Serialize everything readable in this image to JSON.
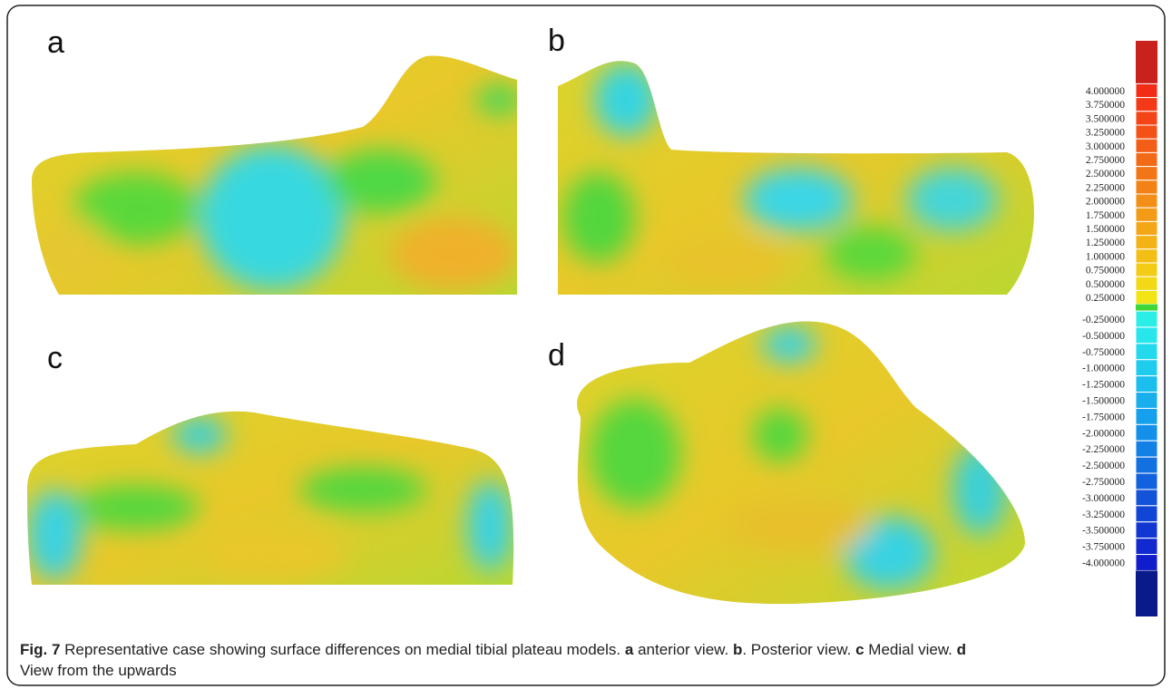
{
  "panels": [
    {
      "label": "a"
    },
    {
      "label": "b"
    },
    {
      "label": "c"
    },
    {
      "label": "d"
    }
  ],
  "colorbar": {
    "positive_labels": [
      "4.000000",
      "3.750000",
      "3.500000",
      "3.250000",
      "3.000000",
      "2.750000",
      "2.500000",
      "2.250000",
      "2.000000",
      "1.750000",
      "1.500000",
      "1.250000",
      "1.000000",
      "0.750000",
      "0.500000",
      "0.250000"
    ],
    "negative_labels": [
      "-0.250000",
      "-0.500000",
      "-0.750000",
      "-1.000000",
      "-1.250000",
      "-1.500000",
      "-1.750000",
      "-2.000000",
      "-2.250000",
      "-2.500000",
      "-2.750000",
      "-3.000000",
      "-3.250000",
      "-3.500000",
      "-3.750000",
      "-4.000000"
    ]
  },
  "caption": {
    "fig_label": "Fig. 7",
    "text": "Representative case showing surface differences on medial tibial plateau models.",
    "views": [
      {
        "letter": "a",
        "text": "anterior view."
      },
      {
        "letter": "b",
        "text": ". Posterior view."
      },
      {
        "letter": "c",
        "text": "Medial view."
      },
      {
        "letter": "d",
        "text": "View from the upwards"
      }
    ]
  }
}
